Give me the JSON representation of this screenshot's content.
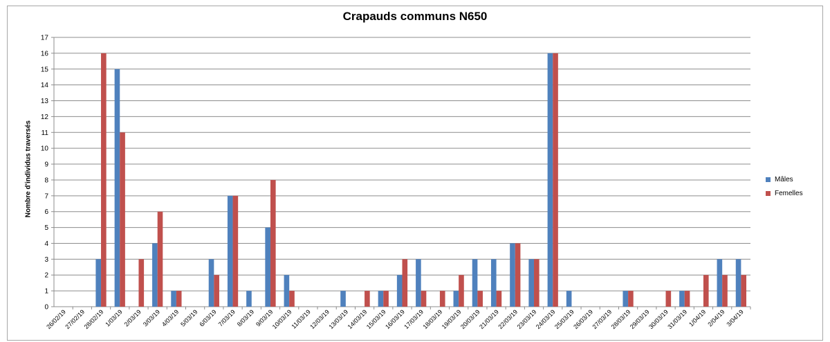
{
  "chart_data": {
    "type": "bar",
    "title": "Crapauds communs N650",
    "xlabel": "",
    "ylabel": "Nombre d'individus traversés",
    "ylim": [
      0,
      17
    ],
    "yticks": [
      0,
      1,
      2,
      3,
      4,
      5,
      6,
      7,
      8,
      9,
      10,
      11,
      12,
      13,
      14,
      15,
      16,
      17
    ],
    "grid": true,
    "legend_position": "right",
    "categories": [
      "26/02/19",
      "27/02/19",
      "28/02/19",
      "1/03/19",
      "2/03/19",
      "3/03/19",
      "4/03/19",
      "5/03/19",
      "6/03/19",
      "7/03/19",
      "8/03/19",
      "9/03/19",
      "10/03/19",
      "11/03/19",
      "12/03/19",
      "13/03/19",
      "14/03/19",
      "15/03/19",
      "16/03/19",
      "17/03/19",
      "18/03/19",
      "19/03/19",
      "20/03/19",
      "21/03/19",
      "22/03/19",
      "23/03/19",
      "24/03/19",
      "25/03/19",
      "26/03/19",
      "27/03/19",
      "28/03/19",
      "29/03/19",
      "30/03/19",
      "31/03/19",
      "1/04/19",
      "2/04/19",
      "3/04/19"
    ],
    "series": [
      {
        "name": "Mâles",
        "color": "#4f81bd",
        "values": [
          0,
          0,
          3,
          15,
          0,
          4,
          1,
          0,
          3,
          7,
          1,
          5,
          2,
          0,
          0,
          1,
          0,
          1,
          2,
          3,
          0,
          1,
          3,
          3,
          4,
          3,
          16,
          1,
          0,
          0,
          1,
          0,
          0,
          1,
          0,
          3,
          3
        ]
      },
      {
        "name": "Femelles",
        "color": "#c0504d",
        "values": [
          0,
          0,
          16,
          11,
          3,
          6,
          1,
          0,
          2,
          7,
          0,
          8,
          1,
          0,
          0,
          0,
          1,
          1,
          3,
          1,
          1,
          2,
          1,
          1,
          4,
          3,
          16,
          0,
          0,
          0,
          1,
          0,
          1,
          1,
          2,
          2,
          2
        ]
      }
    ]
  }
}
